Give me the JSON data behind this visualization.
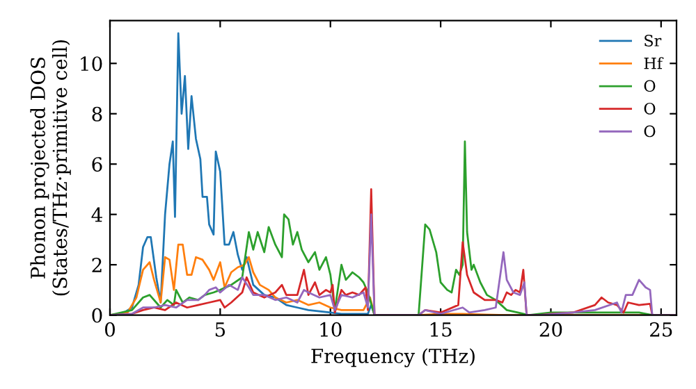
{
  "chart_data": {
    "type": "line",
    "xlabel": "Frequency (THz)",
    "ylabel": "Phonon projected DOS\n(States/THz·primitive cell)",
    "xlim": [
      0,
      25.7
    ],
    "ylim": [
      0,
      11.7
    ],
    "xticks": [
      0,
      5,
      10,
      15,
      20,
      25
    ],
    "yticks": [
      0,
      2,
      4,
      6,
      8,
      10
    ],
    "grid": false,
    "legend": "top right",
    "marker": "none",
    "line_style": "solid",
    "series": [
      {
        "name": "Sr",
        "color": "#1f77b4",
        "x": [
          0,
          0.5,
          1,
          1.3,
          1.5,
          1.7,
          1.85,
          2.1,
          2.3,
          2.5,
          2.7,
          2.85,
          2.95,
          3.1,
          3.25,
          3.4,
          3.55,
          3.7,
          3.9,
          4.1,
          4.2,
          4.4,
          4.5,
          4.7,
          4.8,
          5.0,
          5.2,
          5.4,
          5.6,
          5.8,
          6.0,
          6.2,
          6.5,
          7,
          7.5,
          8,
          8.5,
          9,
          9.5,
          10,
          10.5,
          11,
          11.7,
          11.85,
          12,
          25.7
        ],
        "values": [
          0,
          0.02,
          0.3,
          1.2,
          2.7,
          3.1,
          3.1,
          1.5,
          0.5,
          4.0,
          6.0,
          6.9,
          3.9,
          11.2,
          8.0,
          9.5,
          6.6,
          8.7,
          7.0,
          6.2,
          4.7,
          4.7,
          3.6,
          3.2,
          6.5,
          5.7,
          2.8,
          2.8,
          3.3,
          2.4,
          1.8,
          2.3,
          1.2,
          0.8,
          0.7,
          0.4,
          0.3,
          0.2,
          0.15,
          0.1,
          0.05,
          0.05,
          0.05,
          0.4,
          0,
          0
        ]
      },
      {
        "name": "Hf",
        "color": "#ff7f0e",
        "x": [
          0,
          0.8,
          1.2,
          1.5,
          1.8,
          2.0,
          2.3,
          2.5,
          2.7,
          2.9,
          3.1,
          3.3,
          3.5,
          3.7,
          3.9,
          4.2,
          4.5,
          4.7,
          5.0,
          5.2,
          5.5,
          5.8,
          6.1,
          6.3,
          6.5,
          6.8,
          7.2,
          7.5,
          8,
          8.5,
          9,
          9.5,
          10,
          10.5,
          11,
          11.5,
          11.8,
          12,
          14,
          15,
          16,
          17,
          18,
          25.7
        ],
        "values": [
          0,
          0.1,
          0.7,
          1.8,
          2.1,
          1.4,
          0.5,
          2.3,
          2.2,
          1.0,
          2.8,
          2.8,
          1.6,
          1.6,
          2.3,
          2.2,
          1.8,
          1.4,
          2.1,
          1.1,
          1.7,
          1.9,
          2.0,
          2.3,
          1.7,
          1.2,
          1.0,
          0.7,
          0.5,
          0.6,
          0.4,
          0.5,
          0.3,
          0.2,
          0.2,
          0.2,
          0.7,
          0,
          0,
          0.05,
          0.05,
          0.02,
          0,
          0
        ]
      },
      {
        "name": "O",
        "color": "#2ca02c",
        "x": [
          0,
          1,
          1.5,
          1.8,
          2.1,
          2.3,
          2.6,
          2.9,
          3.0,
          3.3,
          3.6,
          4.0,
          4.3,
          4.7,
          5.0,
          5.5,
          6.0,
          6.3,
          6.5,
          6.7,
          7.0,
          7.2,
          7.5,
          7.8,
          7.9,
          8.1,
          8.3,
          8.5,
          8.7,
          9.0,
          9.3,
          9.5,
          9.8,
          10.0,
          10.2,
          10.5,
          10.7,
          11.0,
          11.3,
          11.5,
          11.7,
          12,
          14,
          14.3,
          14.5,
          14.8,
          15.0,
          15.3,
          15.5,
          15.7,
          15.85,
          16.0,
          16.1,
          16.2,
          16.4,
          16.5,
          16.8,
          17.1,
          17.5,
          18,
          18.5,
          19,
          20,
          22,
          24,
          24.6,
          25.7
        ],
        "values": [
          0,
          0.2,
          0.7,
          0.8,
          0.5,
          0.3,
          0.6,
          0.4,
          1.0,
          0.5,
          0.7,
          0.6,
          0.8,
          0.9,
          1.0,
          1.2,
          1.5,
          3.3,
          2.6,
          3.3,
          2.5,
          3.5,
          2.8,
          2.3,
          4.0,
          3.8,
          2.8,
          3.3,
          2.6,
          2.1,
          2.5,
          1.8,
          2.3,
          1.6,
          0.2,
          2.0,
          1.4,
          1.7,
          1.5,
          1.3,
          0.9,
          0,
          0,
          3.6,
          3.4,
          2.5,
          1.3,
          1.0,
          0.9,
          1.8,
          1.6,
          2.0,
          6.9,
          3.3,
          1.8,
          2.0,
          1.3,
          0.8,
          0.6,
          0.2,
          0.1,
          0,
          0.1,
          0.1,
          0.1,
          0,
          0
        ]
      },
      {
        "name": "O",
        "color": "#d62728",
        "x": [
          0,
          1,
          1.5,
          2,
          2.5,
          3.0,
          3.5,
          4,
          4.5,
          5,
          5.2,
          5.5,
          6,
          6.2,
          6.5,
          7,
          7.5,
          7.8,
          8,
          8.5,
          8.8,
          9.0,
          9.3,
          9.5,
          9.8,
          10.0,
          10.1,
          10.2,
          10.5,
          10.7,
          11,
          11.3,
          11.6,
          11.7,
          11.85,
          12,
          14,
          14.3,
          15,
          15.8,
          16.0,
          16.2,
          16.5,
          17,
          17.5,
          17.8,
          18,
          18.2,
          18.4,
          18.6,
          18.75,
          18.9,
          19.5,
          20,
          21,
          22,
          22.3,
          22.6,
          23,
          23.3,
          23.5,
          24,
          24.5,
          24.6,
          25.7
        ],
        "values": [
          0,
          0.05,
          0.2,
          0.3,
          0.2,
          0.5,
          0.3,
          0.4,
          0.5,
          0.6,
          0.3,
          0.5,
          0.9,
          1.5,
          0.9,
          0.7,
          0.9,
          1.2,
          0.8,
          0.8,
          1.8,
          0.8,
          1.3,
          0.8,
          1.0,
          0.9,
          1.2,
          0.1,
          1.0,
          0.8,
          0.9,
          0.8,
          1.1,
          0.2,
          5.0,
          0,
          0,
          0.2,
          0.1,
          0.4,
          2.9,
          1.6,
          0.9,
          0.6,
          0.6,
          0.5,
          0.9,
          0.8,
          1.0,
          0.9,
          1.8,
          0,
          0,
          0.05,
          0.1,
          0.4,
          0.7,
          0.5,
          0.4,
          0.1,
          0.5,
          0.4,
          0.45,
          0,
          0
        ]
      },
      {
        "name": "O",
        "color": "#9467bd",
        "x": [
          0,
          1,
          1.5,
          2,
          2.5,
          3,
          3.5,
          4,
          4.3,
          4.5,
          4.8,
          5,
          5.4,
          5.8,
          6.0,
          6.3,
          6.5,
          7.0,
          7.5,
          8,
          8.5,
          8.8,
          9,
          9.5,
          10,
          10.2,
          10.5,
          11,
          11.5,
          11.7,
          11.85,
          12,
          14,
          14.3,
          15,
          16,
          16.3,
          17,
          17.5,
          17.85,
          18.0,
          18.3,
          18.6,
          18.8,
          18.9,
          19.5,
          21,
          22,
          23,
          23.2,
          23.4,
          23.7,
          24.0,
          24.3,
          24.5,
          24.6,
          25.7
        ],
        "values": [
          0,
          0.05,
          0.3,
          0.3,
          0.4,
          0.3,
          0.6,
          0.6,
          0.8,
          1.0,
          1.1,
          0.9,
          1.2,
          1.0,
          1.5,
          1.1,
          0.8,
          0.8,
          0.6,
          0.7,
          0.5,
          1.0,
          0.9,
          0.7,
          0.8,
          0.2,
          0.8,
          0.7,
          0.9,
          0.3,
          4.0,
          0,
          0,
          0.2,
          0.05,
          0.3,
          0.1,
          0.2,
          0.3,
          2.5,
          1.4,
          0.9,
          0.8,
          1.3,
          0,
          0,
          0.1,
          0.2,
          0.5,
          0.1,
          0.8,
          0.8,
          1.4,
          1.1,
          1.0,
          0,
          0
        ]
      }
    ]
  }
}
